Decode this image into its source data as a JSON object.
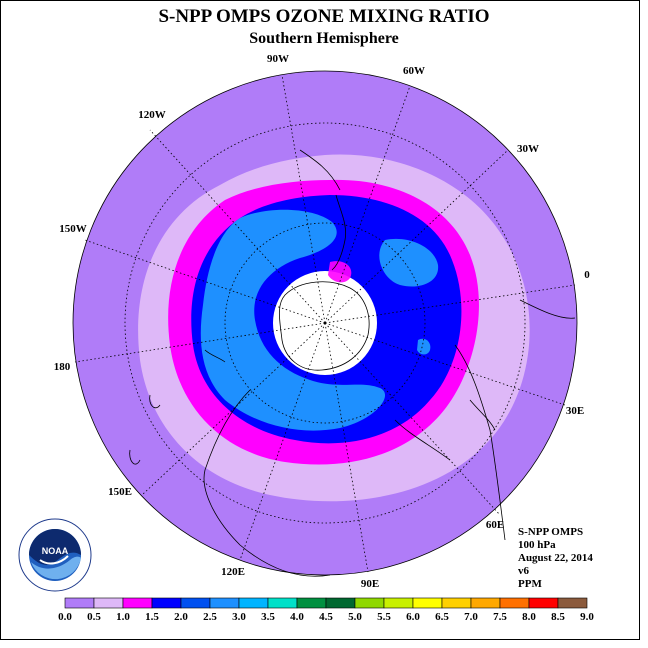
{
  "title": "S-NPP OMPS OZONE MIXING RATIO",
  "subtitle": "Southern Hemisphere",
  "longitude_labels": [
    {
      "id": "90w",
      "text": "90W"
    },
    {
      "id": "60w",
      "text": "60W"
    },
    {
      "id": "30w",
      "text": "30W"
    },
    {
      "id": "0",
      "text": "0"
    },
    {
      "id": "30e",
      "text": "30E"
    },
    {
      "id": "60e",
      "text": "60E"
    },
    {
      "id": "90e",
      "text": "90E"
    },
    {
      "id": "120e",
      "text": "120E"
    },
    {
      "id": "150e",
      "text": "150E"
    },
    {
      "id": "180",
      "text": "180"
    },
    {
      "id": "150w",
      "text": "150W"
    },
    {
      "id": "120w",
      "text": "120W"
    }
  ],
  "info": {
    "instrument": "S-NPP OMPS",
    "level": "100 hPa",
    "date": "August 22, 2014",
    "version": "v6",
    "units": "PPM"
  },
  "logo": {
    "text": "NOAA",
    "ring_text": "NATIONAL OCEANIC AND ATMOSPHERIC ADMINISTRATION • U.S. DEPARTMENT OF COMMERCE"
  },
  "colorbar": {
    "ticks": [
      "0.0",
      "0.5",
      "1.0",
      "1.5",
      "2.0",
      "2.5",
      "3.0",
      "3.5",
      "4.0",
      "4.5",
      "5.0",
      "5.5",
      "6.0",
      "6.5",
      "7.0",
      "7.5",
      "8.0",
      "8.5",
      "9.0"
    ],
    "colors": [
      "#b07cf8",
      "#deb8f8",
      "#ff00ff",
      "#0000ff",
      "#0050f0",
      "#1e90ff",
      "#00b4ff",
      "#00e0c8",
      "#009040",
      "#006830",
      "#90d800",
      "#c8f000",
      "#ffff00",
      "#ffd000",
      "#ffa800",
      "#ff7000",
      "#ff0000",
      "#8b5a3c"
    ]
  },
  "colors": {
    "background_ozone": "#b07cf8",
    "polar_gap": "#ffffff"
  }
}
